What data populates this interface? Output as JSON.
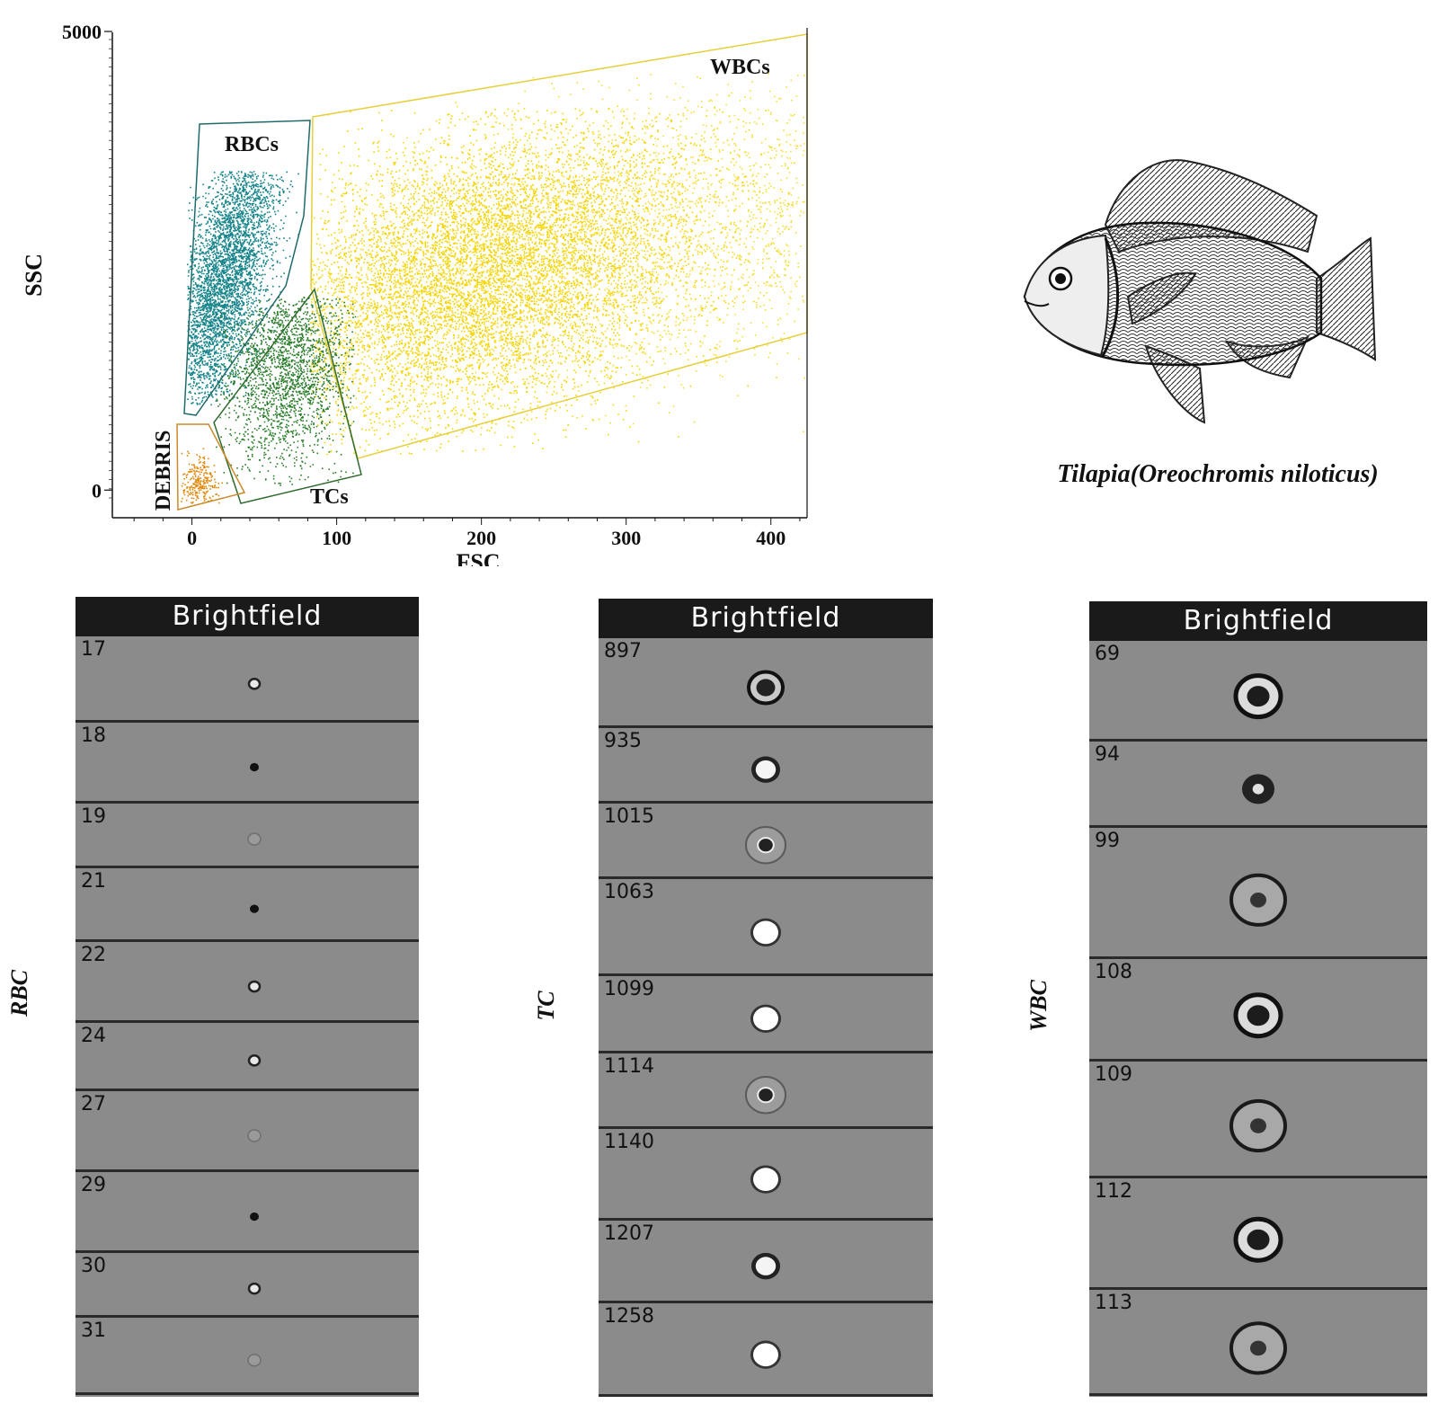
{
  "chart_data": {
    "type": "scatter",
    "title": "",
    "xlabel": "FSC",
    "ylabel": "SSC",
    "xlim": [
      -55,
      425
    ],
    "ylim": [
      -240,
      5000
    ],
    "x_ticks": [
      0,
      100,
      200,
      300,
      400
    ],
    "y_tick_labels": [
      "0",
      "5000"
    ],
    "gates": [
      {
        "name": "WBCs",
        "color": "#e6cf3c",
        "dot_color": "#f5d400",
        "center": [
          200,
          2400
        ],
        "approx_count_style": "dense"
      },
      {
        "name": "RBCs",
        "color": "#1f6b6b",
        "dot_color": "#14848a",
        "center": [
          22,
          2350
        ],
        "approx_count_style": "dense"
      },
      {
        "name": "TCs",
        "color": "#2f6b2f",
        "dot_color": "#2a7d2a",
        "center": [
          65,
          1350
        ],
        "approx_count_style": "medium"
      },
      {
        "name": "DEBRIS",
        "color": "#c98a2a",
        "dot_color": "#e08a10",
        "center": [
          5,
          150
        ],
        "approx_count_style": "sparse"
      }
    ]
  },
  "figure": {
    "fish_caption": "Tilapia(Oreochromis niloticus)",
    "panels": [
      {
        "label": "RBC",
        "header": "Brightfield",
        "cells": [
          {
            "id": "17",
            "kind": "small-ring"
          },
          {
            "id": "18",
            "kind": "small-dark"
          },
          {
            "id": "19",
            "kind": "faint"
          },
          {
            "id": "21",
            "kind": "small-dark"
          },
          {
            "id": "22",
            "kind": "small-ring"
          },
          {
            "id": "24",
            "kind": "small-ring"
          },
          {
            "id": "27",
            "kind": "faint"
          },
          {
            "id": "29",
            "kind": "small-dark"
          },
          {
            "id": "30",
            "kind": "small-ring"
          },
          {
            "id": "31",
            "kind": "faint"
          }
        ]
      },
      {
        "label": "TC",
        "header": "Brightfield",
        "cells": [
          {
            "id": "897",
            "kind": "dark-blob"
          },
          {
            "id": "935",
            "kind": "bright-blob"
          },
          {
            "id": "1015",
            "kind": "ring-dark"
          },
          {
            "id": "1063",
            "kind": "bright"
          },
          {
            "id": "1099",
            "kind": "bright"
          },
          {
            "id": "1114",
            "kind": "ring-dark"
          },
          {
            "id": "1140",
            "kind": "bright"
          },
          {
            "id": "1207",
            "kind": "bright-blob"
          },
          {
            "id": "1258",
            "kind": "bright"
          }
        ]
      },
      {
        "label": "WBC",
        "header": "Brightfield",
        "cells": [
          {
            "id": "69",
            "kind": "large-dark"
          },
          {
            "id": "94",
            "kind": "medium-dark"
          },
          {
            "id": "99",
            "kind": "large-ring"
          },
          {
            "id": "108",
            "kind": "large-dark"
          },
          {
            "id": "109",
            "kind": "large-ring"
          },
          {
            "id": "112",
            "kind": "large-dark"
          },
          {
            "id": "113",
            "kind": "large-ring"
          }
        ]
      }
    ]
  }
}
